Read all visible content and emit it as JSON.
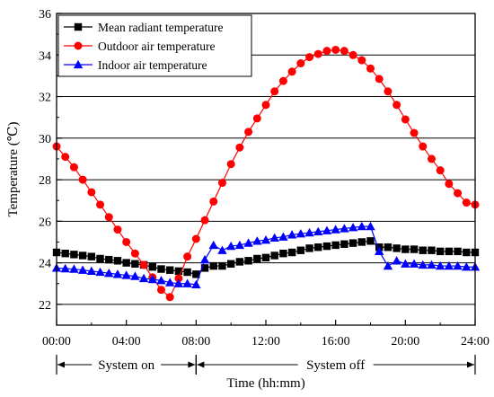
{
  "chart_data": {
    "type": "line",
    "xlabel": "Time (hh:mm)",
    "ylabel": "Temperature (℃)",
    "xlim": [
      0,
      24
    ],
    "ylim": [
      21,
      36
    ],
    "x_ticks": [
      {
        "v": 0,
        "label": "00:00"
      },
      {
        "v": 4,
        "label": "04:00"
      },
      {
        "v": 8,
        "label": "08:00"
      },
      {
        "v": 12,
        "label": "12:00"
      },
      {
        "v": 16,
        "label": "16:00"
      },
      {
        "v": 20,
        "label": "20:00"
      },
      {
        "v": 24,
        "label": "24:00"
      }
    ],
    "y_ticks": [
      {
        "v": 22,
        "label": "22"
      },
      {
        "v": 24,
        "label": "24"
      },
      {
        "v": 26,
        "label": "26"
      },
      {
        "v": 28,
        "label": "28"
      },
      {
        "v": 30,
        "label": "30"
      },
      {
        "v": 32,
        "label": "32"
      },
      {
        "v": 34,
        "label": "34"
      },
      {
        "v": 36,
        "label": "36"
      }
    ],
    "grid": "horizontal",
    "legend_position": "top-left",
    "periods": [
      {
        "label": "System on",
        "start": 0,
        "end": 8
      },
      {
        "label": "System off",
        "start": 8,
        "end": 24
      }
    ],
    "series": [
      {
        "name": "Mean radiant temperature",
        "color": "#000000",
        "marker": "square",
        "points": [
          [
            0.0,
            24.5
          ],
          [
            0.5,
            24.45
          ],
          [
            1.0,
            24.4
          ],
          [
            1.5,
            24.35
          ],
          [
            2.0,
            24.3
          ],
          [
            2.5,
            24.2
          ],
          [
            3.0,
            24.15
          ],
          [
            3.5,
            24.1
          ],
          [
            4.0,
            24.0
          ],
          [
            4.5,
            23.95
          ],
          [
            5.0,
            23.9
          ],
          [
            5.5,
            23.8
          ],
          [
            6.0,
            23.7
          ],
          [
            6.5,
            23.65
          ],
          [
            7.0,
            23.6
          ],
          [
            7.5,
            23.55
          ],
          [
            8.0,
            23.45
          ],
          [
            8.5,
            23.75
          ],
          [
            9.0,
            23.85
          ],
          [
            9.5,
            23.85
          ],
          [
            10.0,
            23.95
          ],
          [
            10.5,
            24.05
          ],
          [
            11.0,
            24.1
          ],
          [
            11.5,
            24.2
          ],
          [
            12.0,
            24.25
          ],
          [
            12.5,
            24.35
          ],
          [
            13.0,
            24.45
          ],
          [
            13.5,
            24.5
          ],
          [
            14.0,
            24.6
          ],
          [
            14.5,
            24.7
          ],
          [
            15.0,
            24.75
          ],
          [
            15.5,
            24.8
          ],
          [
            16.0,
            24.85
          ],
          [
            16.5,
            24.9
          ],
          [
            17.0,
            24.95
          ],
          [
            17.5,
            25.0
          ],
          [
            18.0,
            25.05
          ],
          [
            18.5,
            24.75
          ],
          [
            19.0,
            24.75
          ],
          [
            19.5,
            24.7
          ],
          [
            20.0,
            24.65
          ],
          [
            20.5,
            24.65
          ],
          [
            21.0,
            24.6
          ],
          [
            21.5,
            24.6
          ],
          [
            22.0,
            24.55
          ],
          [
            22.5,
            24.55
          ],
          [
            23.0,
            24.55
          ],
          [
            23.5,
            24.5
          ],
          [
            24.0,
            24.5
          ]
        ]
      },
      {
        "name": "Outdoor air temperature",
        "color": "#ff0000",
        "marker": "circle",
        "points": [
          [
            0.0,
            29.6
          ],
          [
            0.5,
            29.1
          ],
          [
            1.0,
            28.6
          ],
          [
            1.5,
            28.0
          ],
          [
            2.0,
            27.4
          ],
          [
            2.5,
            26.8
          ],
          [
            3.0,
            26.2
          ],
          [
            3.5,
            25.6
          ],
          [
            4.0,
            25.0
          ],
          [
            4.5,
            24.45
          ],
          [
            5.0,
            23.9
          ],
          [
            5.5,
            23.3
          ],
          [
            6.0,
            22.7
          ],
          [
            6.5,
            22.35
          ],
          [
            7.0,
            23.25
          ],
          [
            7.5,
            24.3
          ],
          [
            8.0,
            25.15
          ],
          [
            8.5,
            26.05
          ],
          [
            9.0,
            26.95
          ],
          [
            9.5,
            27.85
          ],
          [
            10.0,
            28.75
          ],
          [
            10.5,
            29.55
          ],
          [
            11.0,
            30.3
          ],
          [
            11.5,
            30.95
          ],
          [
            12.0,
            31.6
          ],
          [
            12.5,
            32.25
          ],
          [
            13.0,
            32.75
          ],
          [
            13.5,
            33.2
          ],
          [
            14.0,
            33.6
          ],
          [
            14.5,
            33.9
          ],
          [
            15.0,
            34.05
          ],
          [
            15.5,
            34.2
          ],
          [
            16.0,
            34.25
          ],
          [
            16.5,
            34.2
          ],
          [
            17.0,
            34.0
          ],
          [
            17.5,
            33.75
          ],
          [
            18.0,
            33.35
          ],
          [
            18.5,
            32.85
          ],
          [
            19.0,
            32.25
          ],
          [
            19.5,
            31.6
          ],
          [
            20.0,
            30.9
          ],
          [
            20.5,
            30.25
          ],
          [
            21.0,
            29.6
          ],
          [
            21.5,
            29.0
          ],
          [
            22.0,
            28.45
          ],
          [
            22.5,
            27.8
          ],
          [
            23.0,
            27.35
          ],
          [
            23.5,
            26.9
          ],
          [
            24.0,
            26.8
          ]
        ]
      },
      {
        "name": "Indoor air temperature",
        "color": "#0000ff",
        "marker": "triangle",
        "points": [
          [
            0.0,
            23.75
          ],
          [
            0.5,
            23.72
          ],
          [
            1.0,
            23.7
          ],
          [
            1.5,
            23.65
          ],
          [
            2.0,
            23.6
          ],
          [
            2.5,
            23.55
          ],
          [
            3.0,
            23.5
          ],
          [
            3.5,
            23.45
          ],
          [
            4.0,
            23.4
          ],
          [
            4.5,
            23.35
          ],
          [
            5.0,
            23.25
          ],
          [
            5.5,
            23.2
          ],
          [
            6.0,
            23.15
          ],
          [
            6.5,
            23.05
          ],
          [
            7.0,
            23.0
          ],
          [
            7.5,
            23.0
          ],
          [
            8.0,
            22.95
          ],
          [
            8.5,
            24.15
          ],
          [
            9.0,
            24.85
          ],
          [
            9.5,
            24.6
          ],
          [
            10.0,
            24.8
          ],
          [
            10.5,
            24.85
          ],
          [
            11.0,
            24.95
          ],
          [
            11.5,
            25.05
          ],
          [
            12.0,
            25.1
          ],
          [
            12.5,
            25.2
          ],
          [
            13.0,
            25.25
          ],
          [
            13.5,
            25.35
          ],
          [
            14.0,
            25.4
          ],
          [
            14.5,
            25.45
          ],
          [
            15.0,
            25.5
          ],
          [
            15.5,
            25.55
          ],
          [
            16.0,
            25.6
          ],
          [
            16.5,
            25.65
          ],
          [
            17.0,
            25.7
          ],
          [
            17.5,
            25.75
          ],
          [
            18.0,
            25.75
          ],
          [
            18.5,
            24.55
          ],
          [
            19.0,
            23.85
          ],
          [
            19.5,
            24.1
          ],
          [
            20.0,
            23.95
          ],
          [
            20.5,
            23.95
          ],
          [
            21.0,
            23.9
          ],
          [
            21.5,
            23.9
          ],
          [
            22.0,
            23.85
          ],
          [
            22.5,
            23.85
          ],
          [
            23.0,
            23.85
          ],
          [
            23.5,
            23.8
          ],
          [
            24.0,
            23.8
          ]
        ]
      }
    ]
  }
}
